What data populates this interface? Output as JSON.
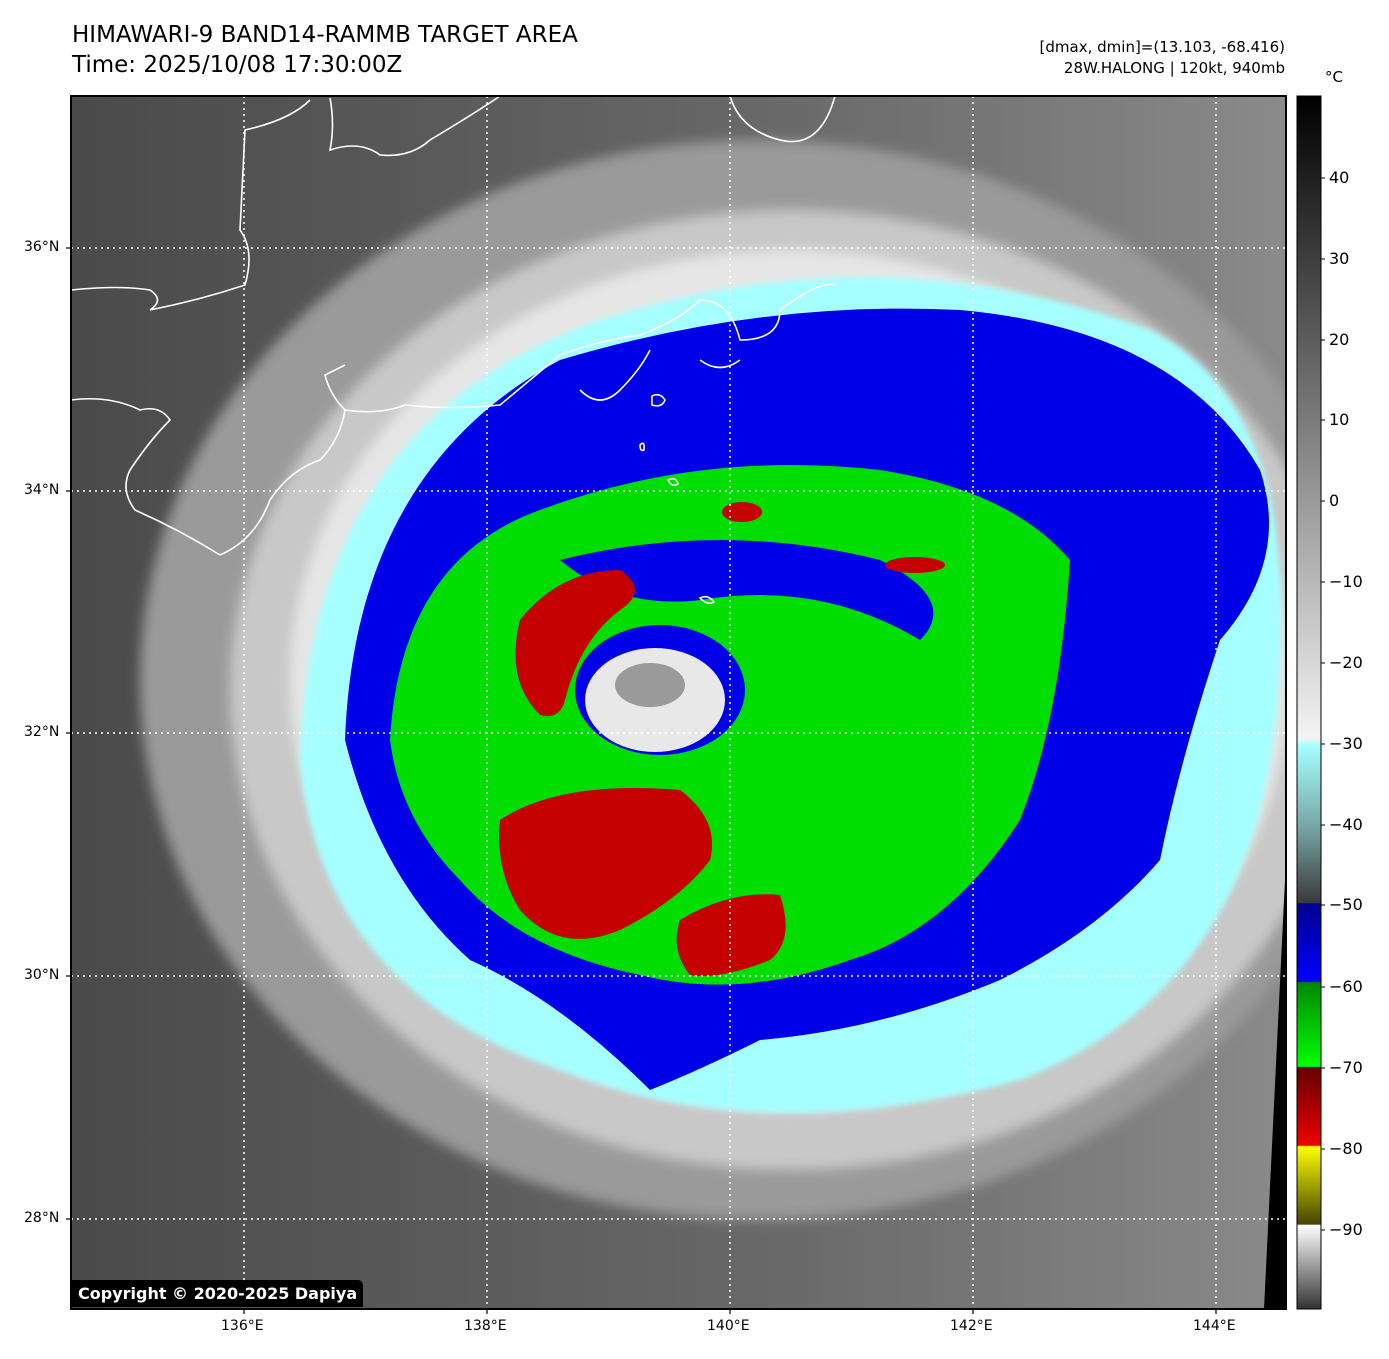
{
  "header": {
    "title_line1": "HIMAWARI-9 BAND14-RAMMB TARGET AREA",
    "title_line2": "Time: 2025/10/08 17:30:00Z",
    "info_line1": "[dmax, dmin]=(13.103, -68.416)",
    "info_line2": "28W.HALONG | 120kt, 940mb"
  },
  "map": {
    "lon_range": [
      134.6,
      144.6
    ],
    "lat_range": [
      27.3,
      37.25
    ],
    "lat_ticks": [
      "36°N",
      "34°N",
      "32°N",
      "30°N",
      "28°N"
    ],
    "lon_ticks": [
      "136°E",
      "138°E",
      "140°E",
      "142°E",
      "144°E"
    ],
    "storm_center": {
      "lon": 139.2,
      "lat": 32.45
    }
  },
  "colorbar": {
    "unit": "°C",
    "labels": [
      "40",
      "30",
      "20",
      "10",
      "0",
      "−10",
      "−20",
      "−30",
      "−40",
      "−50",
      "−60",
      "−70",
      "−80",
      "−90"
    ],
    "range": [
      -100,
      50
    ],
    "colors": {
      "blue": "#0000ee",
      "green": "#00dd00",
      "red": "#cc0000",
      "yellow": "#ffff00",
      "cyan": "#a6ffff"
    }
  },
  "copyright": "Copyright © 2020-2025 Dapiya"
}
